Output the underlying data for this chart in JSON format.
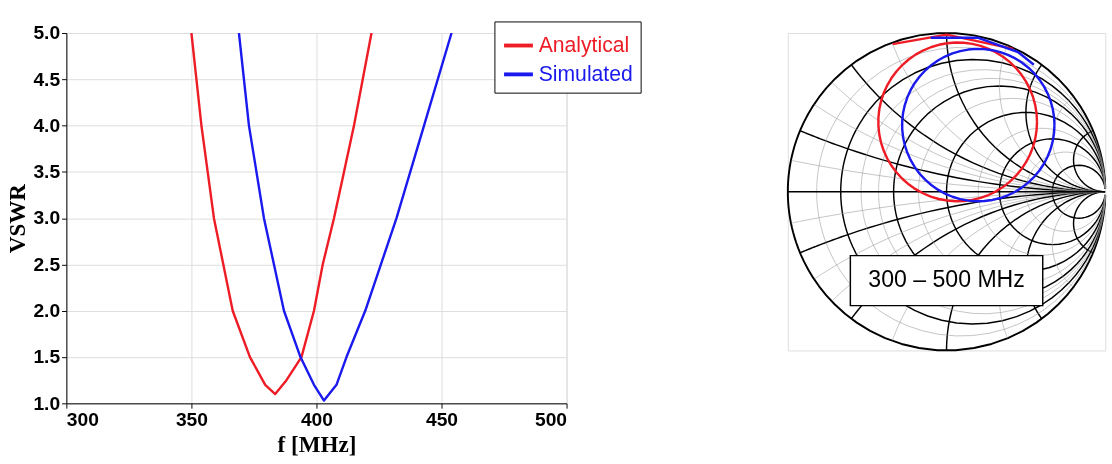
{
  "chart_data": [
    {
      "type": "line",
      "xlabel": "f [MHz]",
      "ylabel": "VSWR",
      "xlim": [
        300,
        500
      ],
      "ylim": [
        1.0,
        5.0
      ],
      "xticks": [
        300,
        350,
        400,
        450,
        500
      ],
      "yticks": [
        {
          "value": 1.0,
          "label": "1.0"
        },
        1.5,
        {
          "value": 2.0,
          "label": "2.0"
        },
        2.5,
        {
          "value": 3.0,
          "label": "3.0"
        },
        3.5,
        {
          "value": 4.0,
          "label": "4.0"
        },
        4.5,
        {
          "value": 5.0,
          "label": "5.0"
        }
      ],
      "grid": true,
      "legend": "top right",
      "line_style": "solid",
      "marker": "none",
      "series": [
        {
          "name": "Analytical",
          "color": "#ee1c25",
          "x": [
            350,
            354,
            359,
            366.5,
            373.4,
            379.5,
            383.5,
            388,
            394,
            399,
            402.5,
            407,
            411,
            415,
            418.5,
            422
          ],
          "values": [
            5.0,
            4.0,
            3.0,
            2.0,
            1.5,
            1.2,
            1.1,
            1.25,
            1.5,
            2.0,
            2.5,
            3.0,
            3.5,
            4.0,
            4.5,
            5.0
          ]
        },
        {
          "name": "Simulated",
          "color": "#1a1aee",
          "x": [
            369,
            373,
            379,
            387,
            393.6,
            399,
            403,
            408,
            412,
            419.5,
            432,
            443,
            454
          ],
          "values": [
            5.0,
            4.0,
            3.0,
            2.0,
            1.5,
            1.2,
            1.03,
            1.2,
            1.5,
            2.0,
            3.0,
            4.0,
            5.0
          ]
        }
      ]
    },
    {
      "type": "other",
      "annotations": [
        "300 – 500 MHz"
      ]
    }
  ]
}
